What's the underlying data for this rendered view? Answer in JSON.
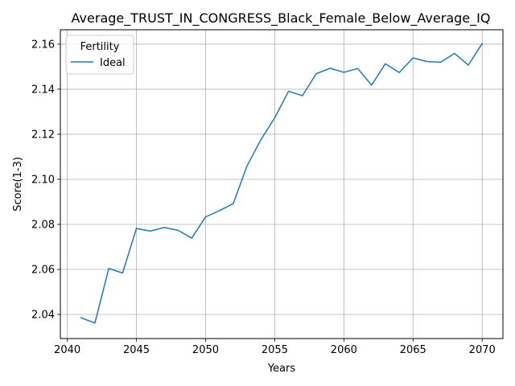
{
  "chart_data": {
    "type": "line",
    "title": "Average_TRUST_IN_CONGRESS_Black_Female_Below_Average_IQ",
    "xlabel": "Years",
    "ylabel": "Score(1-3)",
    "xlim": [
      2039.5,
      2071.5
    ],
    "ylim": [
      2.0293,
      2.1664
    ],
    "xticks": [
      2040,
      2045,
      2050,
      2055,
      2060,
      2065,
      2070
    ],
    "yticks": [
      2.04,
      2.06,
      2.08,
      2.1,
      2.12,
      2.14,
      2.16
    ],
    "xtick_labels": [
      "2040",
      "2045",
      "2050",
      "2055",
      "2060",
      "2065",
      "2070"
    ],
    "ytick_labels": [
      "2.04",
      "2.06",
      "2.08",
      "2.10",
      "2.12",
      "2.14",
      "2.16"
    ],
    "grid": true,
    "legend": {
      "title": "Fertility",
      "position": "top-left"
    },
    "x": [
      2041,
      2042,
      2043,
      2044,
      2045,
      2046,
      2047,
      2048,
      2049,
      2050,
      2051,
      2052,
      2053,
      2054,
      2055,
      2056,
      2057,
      2058,
      2059,
      2060,
      2061,
      2062,
      2063,
      2064,
      2065,
      2066,
      2067,
      2068,
      2069,
      2070
    ],
    "series": [
      {
        "name": "Ideal",
        "color": "#1f77b4",
        "values": [
          2.0385,
          2.0362,
          2.0604,
          2.0584,
          2.0782,
          2.077,
          2.0786,
          2.0774,
          2.0739,
          2.0833,
          2.0861,
          2.0892,
          2.106,
          2.1176,
          2.1273,
          2.1391,
          2.1371,
          2.1469,
          2.1493,
          2.1475,
          2.1492,
          2.1418,
          2.1513,
          2.1474,
          2.1539,
          2.1523,
          2.152,
          2.1559,
          2.1507,
          2.1603
        ]
      }
    ]
  }
}
